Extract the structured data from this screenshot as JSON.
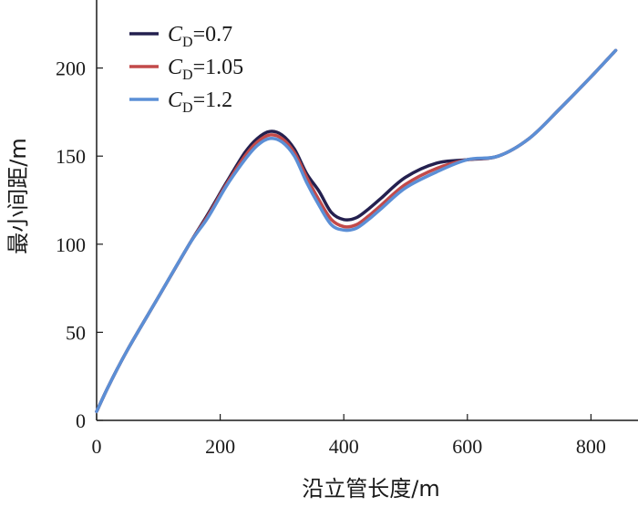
{
  "chart_data": {
    "type": "line",
    "xlabel": "沿立管长度/m",
    "ylabel": "最小间距/m",
    "xlim": [
      0,
      840
    ],
    "ylim": [
      0,
      240
    ],
    "x_ticks": [
      "0",
      "200",
      "400",
      "600",
      "800"
    ],
    "y_ticks": [
      "0",
      "50",
      "100",
      "150",
      "200"
    ],
    "legend_position": "top-left",
    "grid": false,
    "series": [
      {
        "name": "C_D=0.7",
        "label": {
          "symbol": "C",
          "sub": "D",
          "value": "=0.7"
        },
        "color": "#24204f",
        "x": [
          0,
          20,
          50,
          100,
          150,
          180,
          210,
          240,
          260,
          280,
          300,
          320,
          340,
          360,
          380,
          400,
          420,
          440,
          460,
          500,
          550,
          600,
          650,
          700,
          750,
          800,
          840
        ],
        "y": [
          5,
          20,
          40,
          70,
          100,
          117,
          135,
          152,
          160,
          164,
          162,
          154,
          140,
          130,
          118,
          114,
          115,
          120,
          126,
          138,
          146,
          148,
          150,
          160,
          177,
          195,
          210
        ]
      },
      {
        "name": "C_D=1.05",
        "label": {
          "symbol": "C",
          "sub": "D",
          "value": "=1.05"
        },
        "color": "#c24a4a",
        "x": [
          0,
          20,
          50,
          100,
          150,
          180,
          210,
          240,
          260,
          280,
          300,
          320,
          340,
          360,
          380,
          400,
          420,
          440,
          460,
          500,
          550,
          600,
          650,
          700,
          750,
          800,
          840
        ],
        "y": [
          5,
          20,
          40,
          70,
          100,
          116,
          134,
          150,
          158,
          162,
          160,
          152,
          138,
          125,
          114,
          110,
          111,
          116,
          122,
          134,
          143,
          148,
          150,
          160,
          177,
          195,
          210
        ]
      },
      {
        "name": "C_D=1.2",
        "label": {
          "symbol": "C",
          "sub": "D",
          "value": "=1.2"
        },
        "color": "#5b8fd6",
        "x": [
          0,
          20,
          50,
          100,
          150,
          180,
          210,
          240,
          260,
          280,
          300,
          320,
          340,
          360,
          380,
          400,
          420,
          440,
          460,
          500,
          550,
          600,
          650,
          700,
          750,
          800,
          840
        ],
        "y": [
          5,
          20,
          40,
          70,
          100,
          115,
          133,
          148,
          156,
          160,
          158,
          150,
          135,
          122,
          111,
          108,
          109,
          114,
          120,
          132,
          141,
          148,
          150,
          160,
          177,
          195,
          210
        ]
      }
    ]
  }
}
